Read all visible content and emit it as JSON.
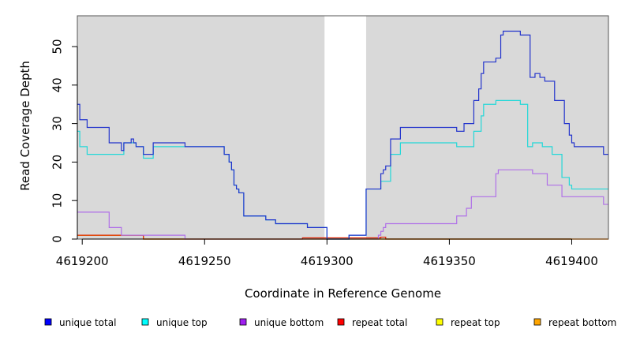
{
  "chart_data": {
    "type": "line",
    "xlabel": "Coordinate in Reference Genome",
    "ylabel": "Read Coverage Depth",
    "xlim": [
      4619198,
      4619415
    ],
    "ylim": [
      0,
      58
    ],
    "x_ticks": [
      4619200,
      4619250,
      4619300,
      4619350,
      4619400
    ],
    "x_tick_labels": [
      "4619200",
      "4619250",
      "4619300",
      "4619350",
      "4619400"
    ],
    "y_ticks": [
      0,
      10,
      20,
      30,
      40,
      50
    ],
    "y_tick_labels": [
      "0",
      "10",
      "20",
      "30",
      "40",
      "50"
    ],
    "grid": false,
    "plot_background": "#d9d9d9",
    "shaded_regions": [
      {
        "x0": 4619198,
        "x1": 4619299
      },
      {
        "x0": 4619316,
        "x1": 4619415
      }
    ],
    "legend_position": "bottom",
    "series": [
      {
        "name": "unique total",
        "color": "#0000ff",
        "line_color": "#2233cc",
        "step": [
          [
            4619198,
            35
          ],
          [
            4619199,
            31
          ],
          [
            4619202,
            29
          ],
          [
            4619211,
            25
          ],
          [
            4619216,
            23
          ],
          [
            4619217,
            25
          ],
          [
            4619220,
            26
          ],
          [
            4619221,
            25
          ],
          [
            4619222,
            24
          ],
          [
            4619225,
            22
          ],
          [
            4619229,
            25
          ],
          [
            4619242,
            24
          ],
          [
            4619258,
            22
          ],
          [
            4619260,
            20
          ],
          [
            4619261,
            18
          ],
          [
            4619262,
            14
          ],
          [
            4619263,
            13
          ],
          [
            4619264,
            12
          ],
          [
            4619266,
            6
          ],
          [
            4619275,
            5
          ],
          [
            4619279,
            4
          ],
          [
            4619292,
            3
          ],
          [
            4619300,
            0
          ],
          [
            4619309,
            1
          ],
          [
            4619316,
            13
          ],
          [
            4619322,
            17
          ],
          [
            4619323,
            18
          ],
          [
            4619324,
            19
          ],
          [
            4619326,
            26
          ],
          [
            4619330,
            29
          ],
          [
            4619353,
            28
          ],
          [
            4619356,
            30
          ],
          [
            4619360,
            36
          ],
          [
            4619362,
            39
          ],
          [
            4619363,
            43
          ],
          [
            4619364,
            46
          ],
          [
            4619369,
            47
          ],
          [
            4619371,
            53
          ],
          [
            4619372,
            54
          ],
          [
            4619379,
            53
          ],
          [
            4619383,
            42
          ],
          [
            4619385,
            43
          ],
          [
            4619387,
            42
          ],
          [
            4619389,
            41
          ],
          [
            4619393,
            36
          ],
          [
            4619397,
            30
          ],
          [
            4619399,
            27
          ],
          [
            4619400,
            25
          ],
          [
            4619401,
            24
          ],
          [
            4619413,
            22
          ],
          [
            4619415,
            22
          ]
        ]
      },
      {
        "name": "unique top",
        "color": "#00ffff",
        "line_color": "#22d8d8",
        "step": [
          [
            4619198,
            28
          ],
          [
            4619199,
            24
          ],
          [
            4619202,
            22
          ],
          [
            4619216,
            22
          ],
          [
            4619217,
            25
          ],
          [
            4619222,
            24
          ],
          [
            4619225,
            21
          ],
          [
            4619229,
            24
          ],
          [
            4619242,
            24
          ],
          [
            4619258,
            22
          ],
          [
            4619260,
            20
          ],
          [
            4619261,
            18
          ],
          [
            4619262,
            14
          ],
          [
            4619263,
            13
          ],
          [
            4619264,
            12
          ],
          [
            4619266,
            6
          ],
          [
            4619275,
            5
          ],
          [
            4619279,
            4
          ],
          [
            4619292,
            3
          ],
          [
            4619300,
            0
          ],
          [
            4619309,
            1
          ],
          [
            4619316,
            13
          ],
          [
            4619322,
            15
          ],
          [
            4619326,
            22
          ],
          [
            4619330,
            25
          ],
          [
            4619353,
            24
          ],
          [
            4619360,
            28
          ],
          [
            4619363,
            32
          ],
          [
            4619364,
            35
          ],
          [
            4619369,
            36
          ],
          [
            4619379,
            35
          ],
          [
            4619382,
            24
          ],
          [
            4619384,
            25
          ],
          [
            4619388,
            24
          ],
          [
            4619392,
            22
          ],
          [
            4619396,
            16
          ],
          [
            4619399,
            14
          ],
          [
            4619400,
            13
          ],
          [
            4619415,
            13
          ]
        ]
      },
      {
        "name": "unique bottom",
        "color": "#a020f0",
        "line_color": "#b070e8",
        "step": [
          [
            4619198,
            7
          ],
          [
            4619211,
            3
          ],
          [
            4619216,
            1
          ],
          [
            4619242,
            0
          ],
          [
            4619290,
            0
          ],
          [
            4619300,
            0
          ],
          [
            4619321,
            1
          ],
          [
            4619322,
            2
          ],
          [
            4619323,
            3
          ],
          [
            4619324,
            4
          ],
          [
            4619353,
            6
          ],
          [
            4619357,
            8
          ],
          [
            4619359,
            11
          ],
          [
            4619369,
            17
          ],
          [
            4619370,
            18
          ],
          [
            4619384,
            17
          ],
          [
            4619390,
            14
          ],
          [
            4619396,
            11
          ],
          [
            4619413,
            9
          ],
          [
            4619415,
            9
          ]
        ]
      },
      {
        "name": "repeat total",
        "color": "#ff0000",
        "line_color": "#dd2200",
        "step": [
          [
            4619198,
            1
          ],
          [
            4619225,
            0
          ],
          [
            4619290,
            0.3
          ],
          [
            4619300,
            0.3
          ],
          [
            4619322,
            0.5
          ],
          [
            4619324,
            0
          ],
          [
            4619415,
            0
          ]
        ]
      },
      {
        "name": "repeat top",
        "color": "#ffff00",
        "line_color": "#e8d800",
        "step": [
          [
            4619198,
            1
          ],
          [
            4619225,
            0
          ],
          [
            4619415,
            0
          ]
        ]
      },
      {
        "name": "repeat bottom",
        "color": "#ffa500",
        "line_color": "#ff9900",
        "step": [
          [
            4619198,
            1
          ],
          [
            4619225,
            0
          ],
          [
            4619415,
            0
          ]
        ]
      }
    ]
  }
}
